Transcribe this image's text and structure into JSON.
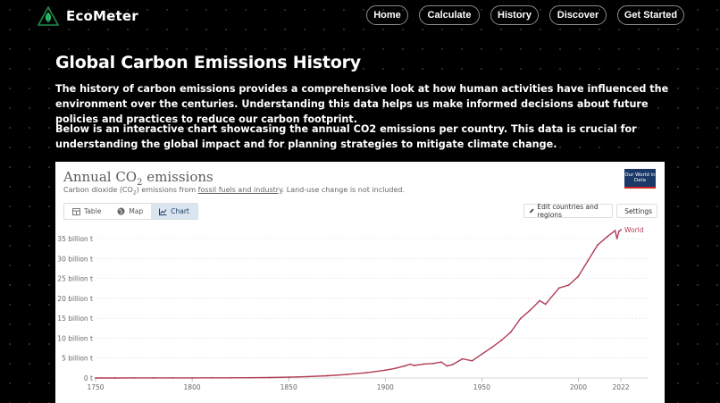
{
  "brand": {
    "name": "EcoMeter"
  },
  "nav": {
    "items": [
      "Home",
      "Calculate",
      "History",
      "Discover",
      "Get Started"
    ]
  },
  "page": {
    "title": "Global Carbon Emissions History",
    "paragraph1": "The history of carbon emissions provides a comprehensive look at how human activities have influenced the environment over the centuries. Understanding this data helps us make informed decisions about future policies and practices to reduce our carbon footprint.",
    "paragraph2": "Below is an interactive chart showcasing the annual CO2 emissions per country. This data is crucial for understanding the global impact and for planning strategies to mitigate climate change."
  },
  "card": {
    "title_prefix": "Annual CO",
    "title_sub": "2",
    "title_suffix": " emissions",
    "subtitle_a": "Carbon dioxide (CO",
    "subtitle_sub": "2",
    "subtitle_b": ") emissions from ",
    "subtitle_link": "fossil fuels and industry",
    "subtitle_c": ". Land-use change is not included.",
    "owid_logo": "Our World in Data",
    "tabs": {
      "table": "Table",
      "map": "Map",
      "chart": "Chart"
    },
    "edit_label": "Edit countries and regions",
    "settings_label": "Settings",
    "line_color": "#b13c55"
  },
  "chart_data": {
    "type": "line",
    "title": "Annual CO₂ emissions",
    "ylim": [
      0,
      37000000000
    ],
    "xlim": [
      1750,
      2022
    ],
    "y_ticks": [
      {
        "value": 0,
        "label": "0 t"
      },
      {
        "value": 5000000000,
        "label": "5 billion t"
      },
      {
        "value": 10000000000,
        "label": "10 billion t"
      },
      {
        "value": 15000000000,
        "label": "15 billion t"
      },
      {
        "value": 20000000000,
        "label": "20 billion t"
      },
      {
        "value": 25000000000,
        "label": "25 billion t"
      },
      {
        "value": 30000000000,
        "label": "30 billion t"
      },
      {
        "value": 35000000000,
        "label": "35 billion t"
      }
    ],
    "x_ticks": [
      "1750",
      "1800",
      "1850",
      "1900",
      "1950",
      "2000",
      "2022"
    ],
    "grid": true,
    "series": [
      {
        "name": "World",
        "x": [
          1750,
          1760,
          1770,
          1780,
          1790,
          1800,
          1810,
          1820,
          1830,
          1840,
          1850,
          1860,
          1870,
          1880,
          1890,
          1900,
          1905,
          1910,
          1913,
          1915,
          1920,
          1925,
          1929,
          1932,
          1935,
          1940,
          1945,
          1950,
          1955,
          1960,
          1965,
          1970,
          1975,
          1980,
          1983,
          1990,
          1995,
          2000,
          2005,
          2010,
          2015,
          2019,
          2020,
          2021,
          2022
        ],
        "y": [
          9000000,
          11000000,
          15000000,
          19000000,
          23000000,
          28000000,
          36000000,
          47000000,
          70000000,
          110000000,
          200000000,
          360000000,
          570000000,
          870000000,
          1300000000,
          1950000000,
          2400000000,
          3000000000,
          3450000000,
          3150000000,
          3500000000,
          3650000000,
          4000000000,
          3000000000,
          3400000000,
          4800000000,
          4300000000,
          6000000000,
          7600000000,
          9400000000,
          11500000000,
          14900000000,
          17000000000,
          19400000000,
          18500000000,
          22600000000,
          23300000000,
          25500000000,
          29500000000,
          33400000000,
          35500000000,
          37000000000,
          35000000000,
          36800000000,
          37200000000
        ]
      }
    ]
  }
}
